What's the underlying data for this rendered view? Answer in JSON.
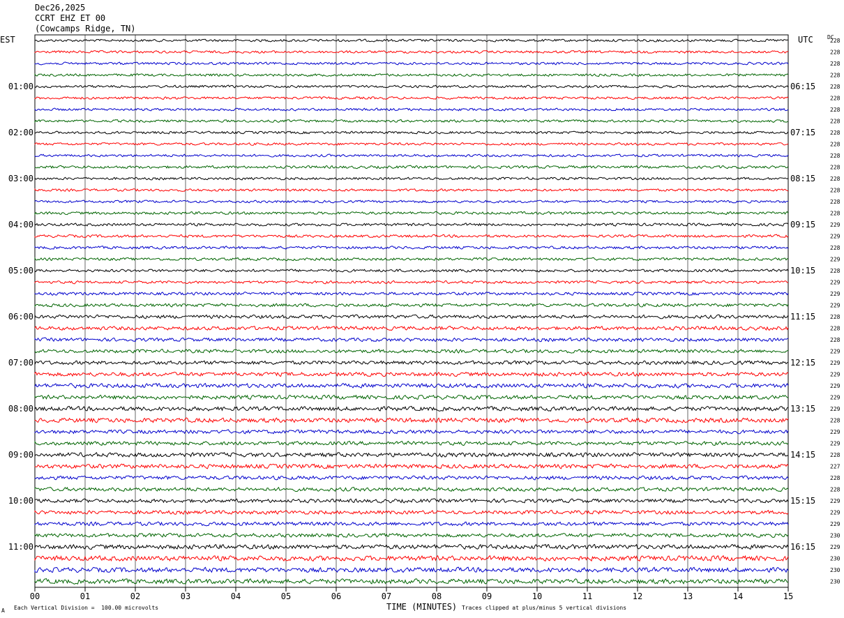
{
  "header": {
    "date": "Dec26,2025",
    "station": "CCRT EHZ ET 00",
    "location": "(Cowcamps Ridge, TN)"
  },
  "axis": {
    "left_zone": "EST",
    "right_zone": "UTC",
    "dc_label": "DC",
    "x_title": "TIME (MINUTES)",
    "note_left": "Each Vertical Division =  100.00 microvolts",
    "note_right": "Traces clipped at plus/minus 5 vertical divisions",
    "corner_mark": "A"
  },
  "chart_data": {
    "type": "line",
    "title": "",
    "xlabel": "TIME (MINUTES)",
    "xlim": [
      0,
      15
    ],
    "x_ticks": [
      "00",
      "01",
      "02",
      "03",
      "04",
      "05",
      "06",
      "07",
      "08",
      "09",
      "10",
      "11",
      "12",
      "13",
      "14",
      "15"
    ],
    "trace_colors": [
      "#000000",
      "#ff0000",
      "#0000cc",
      "#006400"
    ],
    "rows": [
      {
        "left": "",
        "right": "",
        "dc": "228",
        "amp": 1.0
      },
      {
        "left": "",
        "right": "",
        "dc": "228",
        "amp": 1.0
      },
      {
        "left": "",
        "right": "",
        "dc": "228",
        "amp": 1.0
      },
      {
        "left": "",
        "right": "",
        "dc": "228",
        "amp": 1.0
      },
      {
        "left": "01:00",
        "right": "06:15",
        "dc": "228",
        "amp": 1.0
      },
      {
        "left": "",
        "right": "",
        "dc": "228",
        "amp": 1.0
      },
      {
        "left": "",
        "right": "",
        "dc": "228",
        "amp": 1.0
      },
      {
        "left": "",
        "right": "",
        "dc": "228",
        "amp": 1.0
      },
      {
        "left": "02:00",
        "right": "07:15",
        "dc": "228",
        "amp": 1.0
      },
      {
        "left": "",
        "right": "",
        "dc": "228",
        "amp": 1.0
      },
      {
        "left": "",
        "right": "",
        "dc": "228",
        "amp": 1.0
      },
      {
        "left": "",
        "right": "",
        "dc": "228",
        "amp": 1.1
      },
      {
        "left": "03:00",
        "right": "08:15",
        "dc": "228",
        "amp": 1.0
      },
      {
        "left": "",
        "right": "",
        "dc": "228",
        "amp": 1.0
      },
      {
        "left": "",
        "right": "",
        "dc": "228",
        "amp": 1.0
      },
      {
        "left": "",
        "right": "",
        "dc": "228",
        "amp": 1.1
      },
      {
        "left": "04:00",
        "right": "09:15",
        "dc": "229",
        "amp": 1.1
      },
      {
        "left": "",
        "right": "",
        "dc": "229",
        "amp": 1.1
      },
      {
        "left": "",
        "right": "",
        "dc": "228",
        "amp": 1.1
      },
      {
        "left": "",
        "right": "",
        "dc": "229",
        "amp": 1.1
      },
      {
        "left": "05:00",
        "right": "10:15",
        "dc": "228",
        "amp": 1.1
      },
      {
        "left": "",
        "right": "",
        "dc": "229",
        "amp": 1.1
      },
      {
        "left": "",
        "right": "",
        "dc": "229",
        "amp": 1.2
      },
      {
        "left": "",
        "right": "",
        "dc": "229",
        "amp": 1.3
      },
      {
        "left": "06:00",
        "right": "11:15",
        "dc": "228",
        "amp": 1.4
      },
      {
        "left": "",
        "right": "",
        "dc": "228",
        "amp": 1.5
      },
      {
        "left": "",
        "right": "",
        "dc": "228",
        "amp": 1.4
      },
      {
        "left": "",
        "right": "",
        "dc": "229",
        "amp": 1.4
      },
      {
        "left": "07:00",
        "right": "12:15",
        "dc": "229",
        "amp": 1.5
      },
      {
        "left": "",
        "right": "",
        "dc": "229",
        "amp": 1.6
      },
      {
        "left": "",
        "right": "",
        "dc": "229",
        "amp": 1.7
      },
      {
        "left": "",
        "right": "",
        "dc": "229",
        "amp": 1.6
      },
      {
        "left": "08:00",
        "right": "13:15",
        "dc": "229",
        "amp": 1.7
      },
      {
        "left": "",
        "right": "",
        "dc": "228",
        "amp": 1.8
      },
      {
        "left": "",
        "right": "",
        "dc": "229",
        "amp": 1.5
      },
      {
        "left": "",
        "right": "",
        "dc": "229",
        "amp": 1.5
      },
      {
        "left": "09:00",
        "right": "14:15",
        "dc": "228",
        "amp": 1.7
      },
      {
        "left": "",
        "right": "",
        "dc": "227",
        "amp": 1.7
      },
      {
        "left": "",
        "right": "",
        "dc": "228",
        "amp": 1.5
      },
      {
        "left": "",
        "right": "",
        "dc": "228",
        "amp": 1.5
      },
      {
        "left": "10:00",
        "right": "15:15",
        "dc": "229",
        "amp": 1.5
      },
      {
        "left": "",
        "right": "",
        "dc": "229",
        "amp": 1.5
      },
      {
        "left": "",
        "right": "",
        "dc": "229",
        "amp": 1.5
      },
      {
        "left": "",
        "right": "",
        "dc": "230",
        "amp": 1.5
      },
      {
        "left": "11:00",
        "right": "16:15",
        "dc": "229",
        "amp": 1.8
      },
      {
        "left": "",
        "right": "",
        "dc": "230",
        "amp": 2.0
      },
      {
        "left": "",
        "right": "",
        "dc": "230",
        "amp": 1.9
      },
      {
        "left": "",
        "right": "",
        "dc": "230",
        "amp": 1.9
      }
    ]
  }
}
